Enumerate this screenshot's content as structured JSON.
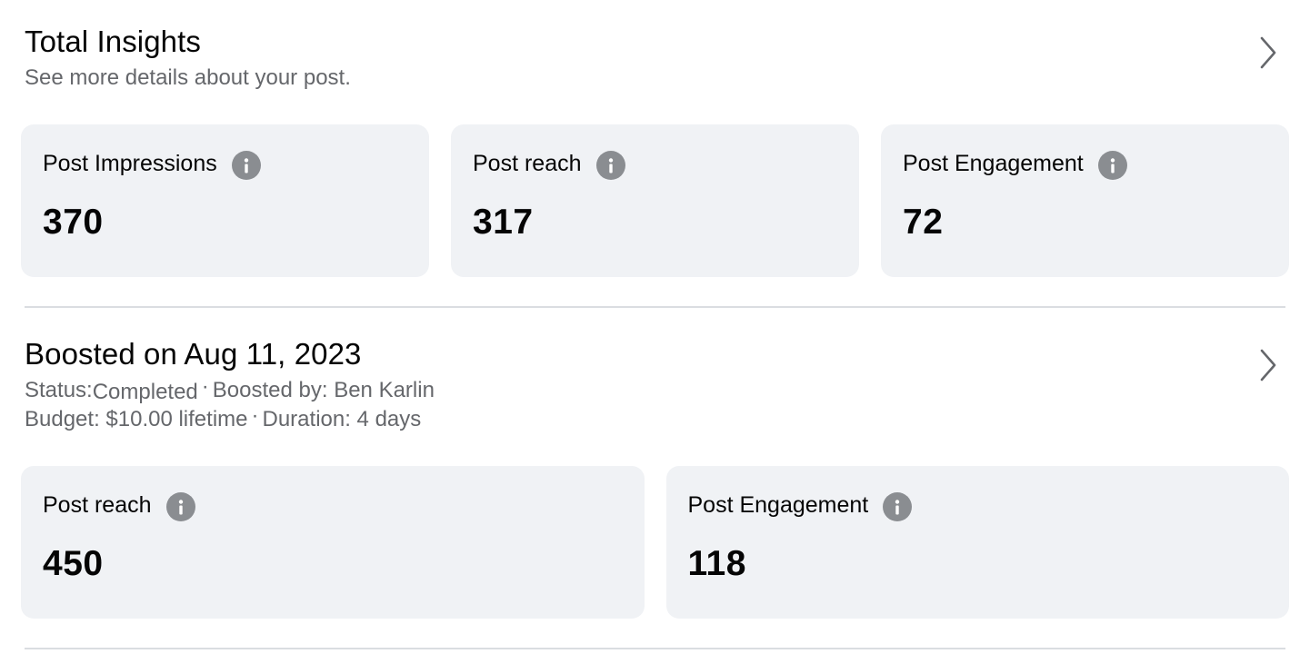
{
  "total_insights": {
    "title": "Total Insights",
    "subtitle": "See more details about your post.",
    "cards": [
      {
        "label": "Post Impressions",
        "value": "370"
      },
      {
        "label": "Post reach",
        "value": "317"
      },
      {
        "label": "Post Engagement",
        "value": "72"
      }
    ]
  },
  "boost": {
    "title": "Boosted on Aug 11, 2023",
    "status_label": "Status:",
    "status_value": "Completed",
    "separator": "·",
    "boosted_by": "Boosted by: Ben Karlin",
    "budget": "Budget: $10.00 lifetime",
    "duration": "Duration: 4 days",
    "cards": [
      {
        "label": "Post reach",
        "value": "450"
      },
      {
        "label": "Post Engagement",
        "value": "118"
      }
    ]
  },
  "icons": {
    "chevron": "chevron-right-icon",
    "info": "info-icon"
  },
  "colors": {
    "card_background": "#f0f2f5",
    "secondary_text": "#65676b",
    "icon_gray": "#8a8d91",
    "divider": "#dadde1"
  }
}
